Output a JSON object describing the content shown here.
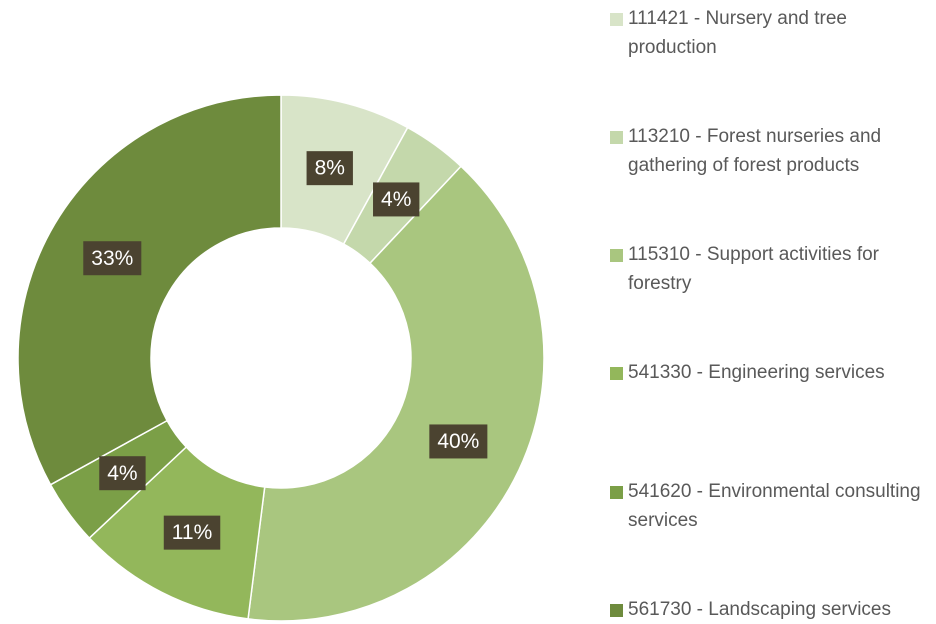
{
  "chart_data": {
    "type": "donut",
    "categories": [
      "111421 - Nursery and tree production",
      "113210 - Forest nurseries and gathering of forest products",
      "115310 - Support activities for forestry",
      "541330 - Engineering services",
      "541620 - Environmental consulting services",
      "561730 - Landscaping services"
    ],
    "values": [
      8,
      4,
      40,
      11,
      4,
      33
    ],
    "value_labels": [
      "8%",
      "4%",
      "40%",
      "11%",
      "4%",
      "33%"
    ],
    "colors": [
      "#d8e4c8",
      "#c4d8ab",
      "#a9c67f",
      "#93b75b",
      "#7b9f47",
      "#6e8b3d"
    ],
    "legend": "right"
  }
}
